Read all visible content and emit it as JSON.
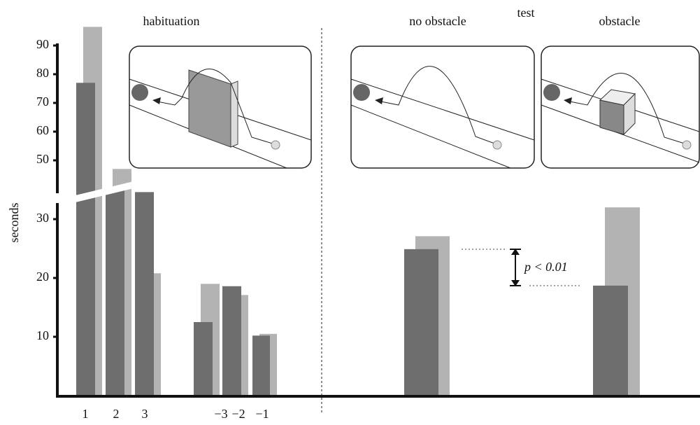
{
  "chart_data": {
    "type": "bar",
    "ylabel": "seconds",
    "annotations": {
      "habituation": "habituation",
      "test": "test",
      "no_obstacle": "no obstacle",
      "obstacle": "obstacle",
      "significance": "p < 0.01"
    },
    "categories": [
      "1",
      "2",
      "3",
      "−3",
      "−2",
      "−1",
      null,
      null
    ],
    "series": [
      {
        "color": "#b3b3b3",
        "values": [
          96.5,
          47,
          20.8,
          19,
          17.1,
          10.5,
          27.1,
          32
        ]
      },
      {
        "color": "#6e6e6e",
        "values": [
          77,
          35.2,
          34.6,
          12.5,
          18.6,
          10.2,
          24.9,
          18.7
        ]
      }
    ],
    "ylim": [
      0,
      97
    ],
    "ybreak": [
      35,
      40
    ],
    "yticks": [
      10,
      20,
      30,
      50,
      60,
      70,
      80,
      90
    ]
  }
}
